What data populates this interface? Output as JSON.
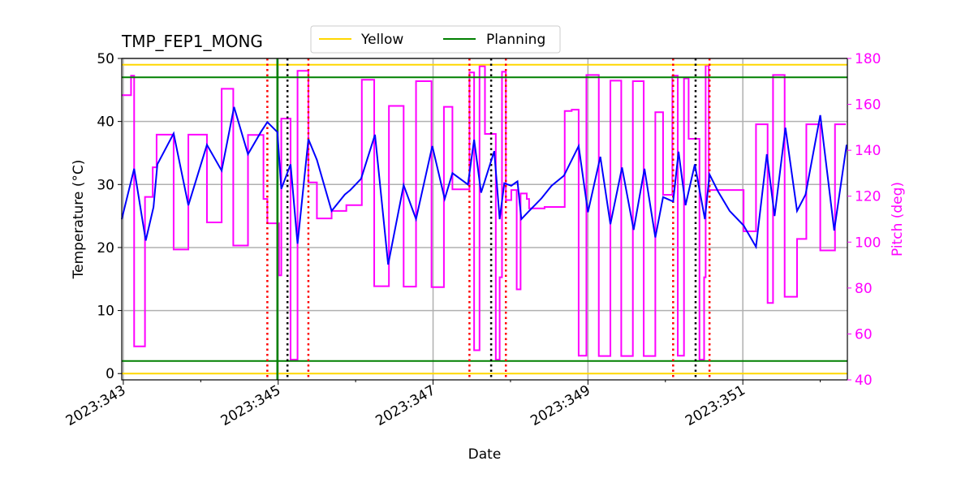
{
  "chart_data": {
    "type": "line",
    "title": "TMP_FEP1_MONG",
    "xlabel": "Date",
    "ylabel": "Temperature ($^\\circ$C)",
    "ylabel_display": "Temperature (°C)",
    "y2label": "Pitch (deg)",
    "xlim": [
      342.98,
      352.35
    ],
    "ylim": [
      -1.0,
      50
    ],
    "y2lim": [
      40,
      180
    ],
    "grid": true,
    "legend_placement": "top-center",
    "x_ticks": [
      343,
      345,
      347,
      349,
      351
    ],
    "x_tick_labels": [
      "2023:343",
      "2023:345",
      "2023:347",
      "2023:349",
      "2023:351"
    ],
    "x_minor_ticks": [
      344,
      346,
      348,
      350,
      352
    ],
    "y_ticks": [
      0,
      10,
      20,
      30,
      40,
      50
    ],
    "y2_ticks": [
      40,
      60,
      80,
      100,
      120,
      140,
      160,
      180
    ],
    "colors": {
      "temperature": "#0000ff",
      "pitch": "#ff00ff",
      "yellow": "#ffd700",
      "planning": "#008000",
      "red_marker": "#ff0000",
      "black_marker": "#000000",
      "grid": "#b0b0b0"
    },
    "legend": [
      {
        "label": "Yellow",
        "color": "#ffd700"
      },
      {
        "label": "Planning",
        "color": "#008000"
      }
    ],
    "limits": {
      "yellow": [
        0,
        49
      ],
      "planning": [
        2,
        47
      ]
    },
    "planning_vline": 344.99,
    "red_vlines": [
      344.86,
      345.39,
      347.47,
      347.94,
      350.1,
      350.57
    ],
    "black_vlines": [
      345.12,
      347.75,
      350.39
    ],
    "temperature": [
      [
        342.98,
        24.5
      ],
      [
        343.14,
        32.5
      ],
      [
        343.29,
        21.1
      ],
      [
        343.39,
        26.4
      ],
      [
        343.44,
        33.2
      ],
      [
        343.65,
        38.1
      ],
      [
        343.84,
        26.7
      ],
      [
        344.08,
        36.3
      ],
      [
        344.27,
        32.2
      ],
      [
        344.43,
        42.3
      ],
      [
        344.61,
        34.8
      ],
      [
        344.78,
        38.4
      ],
      [
        344.86,
        39.9
      ],
      [
        344.99,
        38.3
      ],
      [
        345.04,
        29.3
      ],
      [
        345.16,
        33.2
      ],
      [
        345.25,
        20.6
      ],
      [
        345.39,
        37.2
      ],
      [
        345.5,
        33.9
      ],
      [
        345.69,
        25.8
      ],
      [
        345.86,
        28.4
      ],
      [
        345.93,
        29.1
      ],
      [
        346.07,
        30.9
      ],
      [
        346.25,
        37.9
      ],
      [
        346.42,
        17.3
      ],
      [
        346.62,
        29.9
      ],
      [
        346.78,
        24.5
      ],
      [
        346.99,
        36.1
      ],
      [
        347.15,
        27.7
      ],
      [
        347.25,
        31.8
      ],
      [
        347.45,
        30.0
      ],
      [
        347.53,
        37.1
      ],
      [
        347.62,
        28.7
      ],
      [
        347.79,
        35.3
      ],
      [
        347.86,
        24.5
      ],
      [
        347.92,
        30.2
      ],
      [
        348.01,
        29.8
      ],
      [
        348.09,
        30.5
      ],
      [
        348.14,
        24.5
      ],
      [
        348.24,
        25.8
      ],
      [
        348.32,
        26.8
      ],
      [
        348.4,
        27.8
      ],
      [
        348.53,
        29.8
      ],
      [
        348.69,
        31.4
      ],
      [
        348.88,
        36.1
      ],
      [
        349.0,
        25.6
      ],
      [
        349.16,
        34.4
      ],
      [
        349.29,
        23.7
      ],
      [
        349.44,
        32.7
      ],
      [
        349.59,
        22.8
      ],
      [
        349.73,
        32.5
      ],
      [
        349.87,
        21.6
      ],
      [
        349.97,
        28.0
      ],
      [
        350.1,
        27.3
      ],
      [
        350.17,
        35.2
      ],
      [
        350.26,
        26.7
      ],
      [
        350.38,
        33.2
      ],
      [
        350.51,
        24.5
      ],
      [
        350.57,
        31.6
      ],
      [
        350.68,
        28.9
      ],
      [
        350.83,
        25.8
      ],
      [
        351.01,
        23.5
      ],
      [
        351.17,
        20.1
      ],
      [
        351.31,
        34.8
      ],
      [
        351.41,
        25.0
      ],
      [
        351.55,
        39.0
      ],
      [
        351.7,
        25.8
      ],
      [
        351.81,
        28.4
      ],
      [
        352.0,
        41.0
      ],
      [
        352.18,
        22.7
      ],
      [
        352.34,
        36.3
      ]
    ],
    "pitch": [
      [
        342.98,
        164
      ],
      [
        343.1,
        172.5
      ],
      [
        343.14,
        54.6
      ],
      [
        343.28,
        119.7
      ],
      [
        343.38,
        132.6
      ],
      [
        343.43,
        146.8
      ],
      [
        343.65,
        96.8
      ],
      [
        343.84,
        146.8
      ],
      [
        344.08,
        108.6
      ],
      [
        344.27,
        166.8
      ],
      [
        344.42,
        98.5
      ],
      [
        344.61,
        146.7
      ],
      [
        344.81,
        118.8
      ],
      [
        344.86,
        108.2
      ],
      [
        345.01,
        85.5
      ],
      [
        345.04,
        153.8
      ],
      [
        345.16,
        48.8
      ],
      [
        345.25,
        174.6
      ],
      [
        345.39,
        126
      ],
      [
        345.5,
        110.3
      ],
      [
        345.69,
        113.6
      ],
      [
        345.88,
        116.1
      ],
      [
        346.08,
        170.7
      ],
      [
        346.24,
        80.8
      ],
      [
        346.43,
        159.3
      ],
      [
        346.62,
        80.6
      ],
      [
        346.78,
        170.1
      ],
      [
        346.98,
        80.4
      ],
      [
        347.14,
        158.9
      ],
      [
        347.25,
        123
      ],
      [
        347.47,
        173.9
      ],
      [
        347.53,
        52.9
      ],
      [
        347.6,
        176.6
      ],
      [
        347.67,
        147.1
      ],
      [
        347.81,
        48.8
      ],
      [
        347.86,
        84.7
      ],
      [
        347.89,
        174.2
      ],
      [
        347.94,
        118.3
      ],
      [
        348.01,
        122.7
      ],
      [
        348.08,
        79.4
      ],
      [
        348.13,
        121.2
      ],
      [
        348.21,
        118.8
      ],
      [
        348.24,
        114.7
      ],
      [
        348.44,
        115.3
      ],
      [
        348.7,
        157.1
      ],
      [
        348.79,
        157.7
      ],
      [
        348.88,
        50.5
      ],
      [
        348.98,
        172.8
      ],
      [
        349.14,
        50.4
      ],
      [
        349.29,
        170.3
      ],
      [
        349.43,
        50.4
      ],
      [
        349.58,
        170.1
      ],
      [
        349.72,
        50.4
      ],
      [
        349.87,
        156.6
      ],
      [
        349.97,
        120.6
      ],
      [
        350.09,
        172.5
      ],
      [
        350.16,
        50.5
      ],
      [
        350.24,
        171.3
      ],
      [
        350.3,
        145
      ],
      [
        350.44,
        48.8
      ],
      [
        350.5,
        84.7
      ],
      [
        350.52,
        176.9
      ],
      [
        350.56,
        122.7
      ],
      [
        351.01,
        104.7
      ],
      [
        351.17,
        151.3
      ],
      [
        351.32,
        73.5
      ],
      [
        351.39,
        172.8
      ],
      [
        351.54,
        76.2
      ],
      [
        351.7,
        101.4
      ],
      [
        351.82,
        151.3
      ],
      [
        352.0,
        96.4
      ],
      [
        352.19,
        151.3
      ],
      [
        352.33,
        151.3
      ]
    ]
  }
}
